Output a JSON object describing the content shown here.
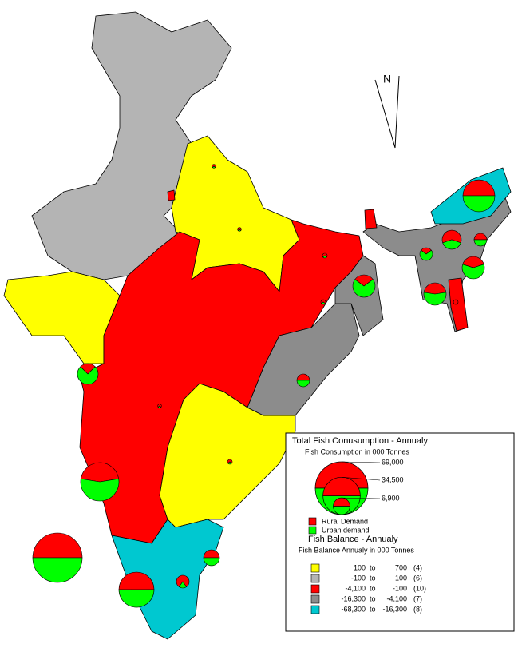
{
  "compass": "N",
  "legend": {
    "size_title": "Total Fish Conusumption - Annualy",
    "size_subtitle": "Fish Consumption in 000 Tonnes",
    "sizes": [
      {
        "value": 69000,
        "label": "69,000"
      },
      {
        "value": 34500,
        "label": "34,500"
      },
      {
        "value": 6900,
        "label": "6,900"
      }
    ],
    "rural_label": "Rural Demand",
    "rural_color": "#ff0000",
    "urban_label": "Urban demand",
    "urban_color": "#00ff00",
    "balance_title": "Fish Balance - Annualy",
    "balance_subtitle": "Fish Balance Annualy in 000 Tonnes",
    "range_word": "to",
    "classes": [
      {
        "from": "100",
        "to": "700",
        "count": "(4)",
        "color": "#ffff00"
      },
      {
        "from": "-100",
        "to": "100",
        "count": "(6)",
        "color": "#b4b4b4"
      },
      {
        "from": "-4,100",
        "to": "-100",
        "count": "(10)",
        "color": "#ff0000"
      },
      {
        "from": "-16,300",
        "to": "-4,100",
        "count": "(7)",
        "color": "#8c8c8c"
      },
      {
        "from": "-68,300",
        "to": "-16,300",
        "count": "(8)",
        "color": "#00c8d0"
      }
    ]
  },
  "pies": [
    {
      "rural": 12600,
      "urban": 12700
    },
    {
      "rural": 5500,
      "urban": 3600
    },
    {
      "rural": 2000,
      "urban": 2050
    },
    {
      "rural": 5000,
      "urban": 7400
    },
    {
      "rural": 1200,
      "urban": 2850
    },
    {
      "rural": 5600,
      "urban": 6800
    },
    {
      "rural": 570,
      "urban": 0
    },
    {
      "rural": 3700,
      "urban": 8700
    },
    {
      "rural": 2000,
      "urban": 2050
    },
    {
      "rural": 2700,
      "urban": 8000
    },
    {
      "rural": 16400,
      "urban": 20100
    },
    {
      "rural": 30400,
      "urban": 30500
    },
    {
      "rural": 15300,
      "urban": 15400
    },
    {
      "rural": 3150,
      "urban": 3150
    },
    {
      "rural": 3250,
      "urban": 800
    },
    {
      "rural": 8100,
      "urban": 8100
    },
    {
      "rural": 250,
      "urban": 100
    },
    {
      "rural": 400,
      "urban": 170
    },
    {
      "rural": 400,
      "urban": 170
    },
    {
      "rural": 250,
      "urban": 100
    },
    {
      "rural": 400,
      "urban": 170
    },
    {
      "rural": 250,
      "urban": 100
    }
  ]
}
